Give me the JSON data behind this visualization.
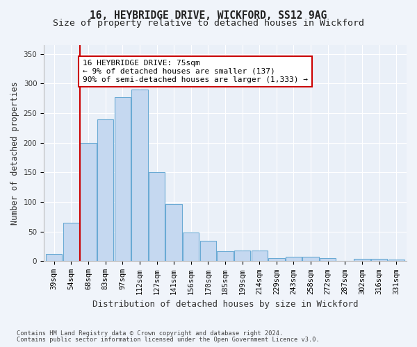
{
  "title1": "16, HEYBRIDGE DRIVE, WICKFORD, SS12 9AG",
  "title2": "Size of property relative to detached houses in Wickford",
  "xlabel": "Distribution of detached houses by size in Wickford",
  "ylabel": "Number of detached properties",
  "footnote1": "Contains HM Land Registry data © Crown copyright and database right 2024.",
  "footnote2": "Contains public sector information licensed under the Open Government Licence v3.0.",
  "bin_labels": [
    "39sqm",
    "54sqm",
    "68sqm",
    "83sqm",
    "97sqm",
    "112sqm",
    "127sqm",
    "141sqm",
    "156sqm",
    "170sqm",
    "185sqm",
    "199sqm",
    "214sqm",
    "229sqm",
    "243sqm",
    "258sqm",
    "272sqm",
    "287sqm",
    "302sqm",
    "316sqm",
    "331sqm"
  ],
  "bar_values": [
    12,
    65,
    200,
    240,
    277,
    290,
    150,
    97,
    49,
    35,
    17,
    18,
    18,
    5,
    8,
    8,
    5,
    0,
    4,
    4,
    3
  ],
  "bar_color": "#c5d8f0",
  "bar_edge_color": "#6aaad4",
  "vline_color": "#cc0000",
  "annotation_text": "16 HEYBRIDGE DRIVE: 75sqm\n← 9% of detached houses are smaller (137)\n90% of semi-detached houses are larger (1,333) →",
  "annotation_box_color": "#ffffff",
  "annotation_box_edge_color": "#cc0000",
  "ylim": [
    0,
    365
  ],
  "yticks": [
    0,
    50,
    100,
    150,
    200,
    250,
    300,
    350
  ],
  "fig_bg_color": "#f0f4fa",
  "plot_bg_color": "#eaf0f8",
  "title1_fontsize": 10.5,
  "title2_fontsize": 9.5,
  "xlabel_fontsize": 9,
  "ylabel_fontsize": 8.5,
  "tick_fontsize": 7.5,
  "annotation_fontsize": 8,
  "footnote_fontsize": 6.2
}
